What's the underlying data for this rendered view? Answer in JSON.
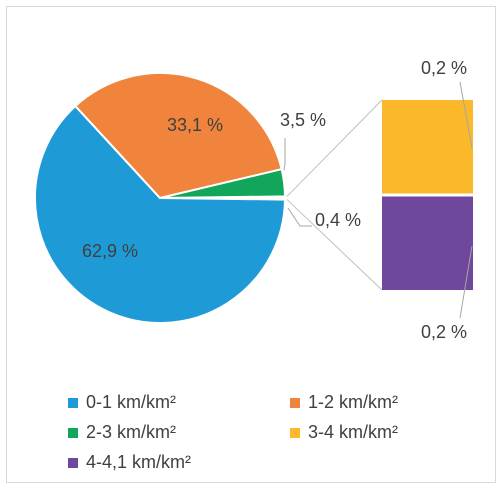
{
  "chart_data": {
    "type": "pie",
    "subtype": "pie-of-bar",
    "title": "",
    "slices": [
      {
        "label": "0-1 km/km²",
        "value": 62.9,
        "display": "62,9 %",
        "color": "#1e9bd7"
      },
      {
        "label": "1-2 km/km²",
        "value": 33.1,
        "display": "33,1 %",
        "color": "#f0843c"
      },
      {
        "label": "2-3 km/km²",
        "value": 3.5,
        "display": "3,5 %",
        "color": "#11a65a"
      }
    ],
    "other_slice": {
      "display": "0,4 %",
      "value": 0.4
    },
    "secondary_bar": [
      {
        "label": "3-4 km/km²",
        "value": 0.2,
        "display": "0,2 %",
        "color": "#fbb82a"
      },
      {
        "label": "4-4,1 km/km²",
        "value": 0.2,
        "display": "0,2 %",
        "color": "#6f479c"
      }
    ],
    "legend": {
      "position": "bottom",
      "items": [
        {
          "label": "0-1 km/km²",
          "color": "#1e9bd7"
        },
        {
          "label": "1-2 km/km²",
          "color": "#f0843c"
        },
        {
          "label": "2-3 km/km²",
          "color": "#11a65a"
        },
        {
          "label": "3-4 km/km²",
          "color": "#fbb82a"
        },
        {
          "label": "4-4,1 km/km²",
          "color": "#6f479c"
        }
      ]
    }
  }
}
